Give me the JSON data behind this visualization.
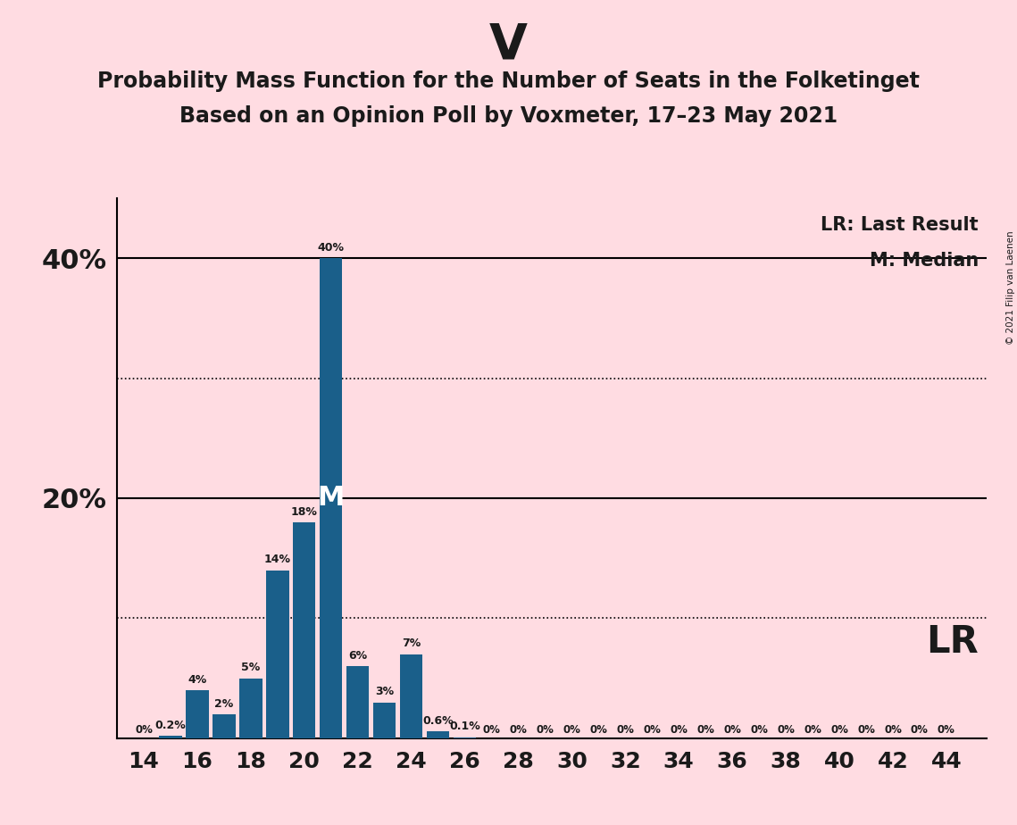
{
  "title": "V",
  "subtitle1": "Probability Mass Function for the Number of Seats in the Folketinget",
  "subtitle2": "Based on an Opinion Poll by Voxmeter, 17–23 May 2021",
  "copyright": "© 2021 Filip van Laenen",
  "background_color": "#ffdce2",
  "bar_color": "#1a5f8a",
  "seats": [
    14,
    15,
    16,
    17,
    18,
    19,
    20,
    21,
    22,
    23,
    24,
    25,
    26,
    27,
    28,
    29,
    30,
    31,
    32,
    33,
    34,
    35,
    36,
    37,
    38,
    39,
    40,
    41,
    42,
    43,
    44
  ],
  "values": [
    0.0,
    0.2,
    4.0,
    2.0,
    5.0,
    14.0,
    18.0,
    40.0,
    6.0,
    3.0,
    7.0,
    0.6,
    0.1,
    0.0,
    0.0,
    0.0,
    0.0,
    0.0,
    0.0,
    0.0,
    0.0,
    0.0,
    0.0,
    0.0,
    0.0,
    0.0,
    0.0,
    0.0,
    0.0,
    0.0,
    0.0
  ],
  "labels": [
    "0%",
    "0.2%",
    "4%",
    "2%",
    "5%",
    "14%",
    "18%",
    "40%",
    "6%",
    "3%",
    "7%",
    "0.6%",
    "0.1%",
    "0%",
    "0%",
    "0%",
    "0%",
    "0%",
    "0%",
    "0%",
    "0%",
    "0%",
    "0%",
    "0%",
    "0%",
    "0%",
    "0%",
    "0%",
    "0%",
    "0%",
    "0%"
  ],
  "median_seat": 21,
  "lr_seat": 26,
  "solid_hlines": [
    20,
    40
  ],
  "dotted_hlines": [
    10,
    30
  ],
  "legend_lr": "LR: Last Result",
  "legend_m": "M: Median",
  "lr_label": "LR",
  "text_color": "#1a1a1a"
}
